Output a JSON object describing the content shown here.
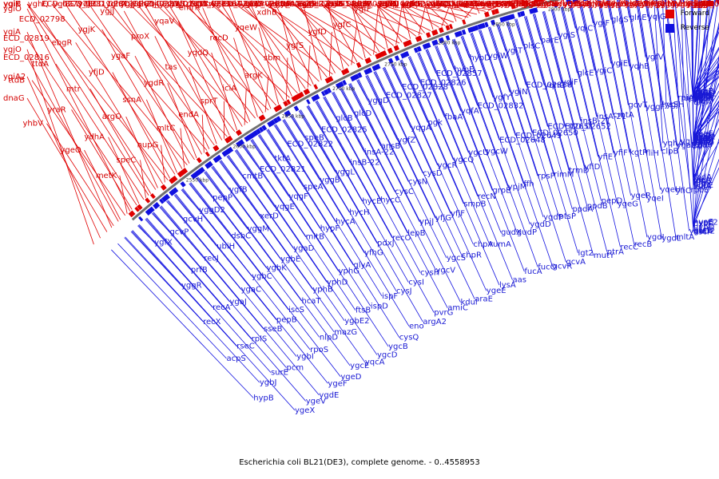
{
  "title": "Escherichia coli BL21(DE3), complete genome. - 0..4558953",
  "legend": [
    {
      "name": "Forward",
      "color": "#e00000"
    },
    {
      "name": "Reverse",
      "color": "#1010e0"
    }
  ],
  "axis_ticks": [
    "3150 kbp",
    "3100 kbp",
    "3050 kbp",
    "3000 kbp",
    "2950 kbp",
    "2900 kbp",
    "2850 kbp",
    "2800 kbp",
    "2750 kbp",
    "2700 kbp",
    "2650 kbp",
    "2600 kbp",
    "2550 kbp"
  ],
  "colors": {
    "forward": "#e00000",
    "reverse": "#1010e0",
    "backbone": "#707070"
  },
  "forward_genes": [
    "ygfH",
    "yqeC",
    "ygfE",
    "bglA",
    "yqeI",
    "ygfU",
    "yqeG",
    "ygfK",
    "ygfI",
    "insF-5",
    "ygfJ",
    "fldB",
    "idi",
    "ygfZ",
    "ygfQ",
    "insE-5",
    "lysR",
    "ygfA",
    "ygfG",
    "ygfB",
    "ygfF",
    "ygfC",
    "ygfD",
    "ygfS",
    "sbm",
    "argK",
    "iciA",
    "sprT",
    "endA",
    "mltC",
    "nupG",
    "speC",
    "metK",
    "yqgG",
    "ECD_02810",
    "gshB",
    "yqgE",
    "yqgF",
    "yggT",
    "yggU",
    "yggV",
    "ygfM",
    "yqeY",
    "insJ-5",
    "mutH",
    "argA",
    "yqeX",
    "insK-5",
    "xdhD",
    "xdhC",
    "ygfO",
    "ygdQ",
    "yqeA",
    "guaD",
    "ygeZ",
    "xdhA",
    "xdhB",
    "yqeW",
    "recD",
    "yqdQ",
    "tas",
    "ygdR",
    "ssnA",
    "argO",
    "ydhA",
    "ygeO",
    "yceB",
    "fucI",
    "xni",
    "fucK",
    "yqcD",
    "fucU",
    "bara",
    "fucR",
    "sdaC",
    "csdA",
    "ygdK",
    "ygdH",
    "sdaB",
    "ygcG",
    "yqcM",
    "yqcN",
    "iap",
    "ygbN",
    "hypE",
    "insL-5",
    "ygbL",
    "hypA",
    "norV",
    "srlA",
    "srlE",
    "emrR",
    "yqaV",
    "proX",
    "ygaF",
    "yfjD",
    "mtr",
    "yraR",
    "yhbV",
    "yraM",
    "agaD",
    "yhbT",
    "yraN",
    "yraL",
    "agaF",
    "yhbP",
    "yraO",
    "yraJ",
    "agaB",
    "yraI",
    "agaY",
    "agaE",
    "agaC",
    "agaS",
    "garP",
    "sohA",
    "tdcR",
    "yhaB",
    "agaR",
    "exuR",
    "gadR",
    "exuT",
    "tdcA",
    "ygjD",
    "yqjC",
    "ygjE",
    "ygjJ",
    "ygjK",
    "ebgR",
    "ttdA",
    "ttdB",
    "dnaG",
    "ygjI",
    "ygjL",
    "cpdA",
    "yqjE",
    "ygiA",
    "metC",
    "ygjB",
    "yghU",
    "yghT",
    "hybC",
    "yghB",
    "ECD_02856",
    "ECD_02855",
    "ECD_02854",
    "ECD_02853",
    "ECD_02852",
    "ECD_02851",
    "ECD_02837",
    "ECD_02836",
    "ECD_02835",
    "ECD_02834",
    "ECD_02833",
    "ECD_02818",
    "ECD_02817",
    "ECD_02815",
    "ECD_02814",
    "ECD_02813",
    "ECD_02811",
    "ECD_02797",
    "ECD_02798",
    "ECD_02819",
    "ECD_02816",
    "ygiA2",
    "ygjH",
    "ygiJ",
    "ygjM",
    "yggA",
    "yggW",
    "ygiM",
    "ygiC",
    "ygiF",
    "ygjG",
    "ebgA",
    "ebgC",
    "fadH",
    "yqjF",
    "rpoD",
    "yqjI",
    "ygiE",
    "ygiS",
    "ygjF",
    "ygjN",
    "yghJ",
    "yghX",
    "dkgA",
    "yghW",
    "yghZ",
    "yghA",
    "yqjH",
    "yghG",
    "yghQ",
    "ygiB",
    "ygiK",
    "ygiO",
    "ygjA",
    "ygjO"
  ],
  "reverse_genes": [
    "tdcG",
    "uxaA",
    "yhaJ",
    "ygjO",
    "uxaC",
    "ygjN",
    "aer",
    "ygjM",
    "ygiP",
    "uppP",
    "ygjH",
    "yqiG",
    "glnE",
    "glgS",
    "ygjF",
    "yqiC",
    "ygiS",
    "parE",
    "plsC",
    "ygiT",
    "ygiW",
    "hybD",
    "hybE",
    "ECD_02857",
    "ECD_02826",
    "ECD_02828",
    "ECD_02827",
    "yggD",
    "glcD",
    "glcB",
    "ECD_02825",
    "speB",
    "ECD_02822",
    "tktA",
    "ECD_02821",
    "cmtB",
    "ygfB",
    "pepP",
    "yggD2",
    "gcvH",
    "gcvP",
    "ygfX",
    "rfaE",
    "ygiS2",
    "yqhC",
    "ygiD",
    "parC",
    "exbB",
    "ygiU",
    "exbD",
    "sufI",
    "ygiA",
    "yqhA",
    "ygfV",
    "yqhB",
    "ygiE",
    "ygiC",
    "glcE",
    "ygiF",
    "yqhG",
    "ECD_02838",
    "ygiN",
    "ygfY",
    "ECD_02832",
    "yqfA",
    "fbaA",
    "pgk",
    "yqgA",
    "ygfZ",
    "ansB",
    "insA-22",
    "insB-22",
    "yggL",
    "yggB",
    "speA",
    "yqgF",
    "yqgE",
    "xerD",
    "yggM",
    "dsbC",
    "ubiH",
    "recJ",
    "prfB",
    "yggR",
    "ygfB2",
    "yggP",
    "yggQ",
    "ygeQ",
    "ygeL",
    "ygeA",
    "yqeF",
    "lgt",
    "thyA",
    "rpiA",
    "lysS",
    "yggF",
    "gcvT",
    "cmtA",
    "insA-21",
    "insB-21",
    "ECD_02652",
    "ECD_02651",
    "ECD_02650",
    "ECD_02649",
    "ECD_02648",
    "ygcW",
    "ygcU",
    "ygcQ",
    "ygcR",
    "cysD",
    "cysN",
    "cysC",
    "hycC",
    "hycE",
    "hycH",
    "hycA",
    "hypF",
    "mltB",
    "ygaD",
    "ygbE",
    "ygbK",
    "ygbC",
    "ygaC",
    "ygaJ",
    "recA",
    "recX",
    "alaS",
    "ygaA",
    "ygaE",
    "ygaH",
    "csrA",
    "hycI",
    "stpA",
    "ygaI",
    "ygaU",
    "ygaE2",
    "clpB",
    "fliH",
    "kgtP",
    "yfiF",
    "yfiE",
    "yfiD",
    "trmD",
    "rimM",
    "rpsP",
    "ffh",
    "ypjM",
    "grpE",
    "recN",
    "smpB",
    "yfjF",
    "yfjG",
    "ypjJ",
    "lepB",
    "recO",
    "pdxJ",
    "yfhG",
    "glyA",
    "yphG",
    "yphD",
    "yphB",
    "hcaT",
    "iscS",
    "pepB",
    "sseB",
    "rplS",
    "rseC",
    "acpS",
    "purL",
    "tadA",
    "yfhB",
    "yphE",
    "era",
    "rnc",
    "lepA",
    "rseA",
    "rpoE",
    "yfiC",
    "yqeH",
    "yqeI",
    "ygeR",
    "ygeG",
    "pepD",
    "ppdB",
    "ppdA",
    "ptsP",
    "ygdP",
    "ygdD",
    "gudP",
    "gudX",
    "rumA",
    "chpA",
    "chpR",
    "ygcS",
    "ygcV",
    "cysH",
    "cysI",
    "cysJ",
    "ispF",
    "ispD",
    "ftsB",
    "ygbE2",
    "mazG",
    "nlpD",
    "rpoS",
    "ygbI",
    "pcm",
    "surE",
    "ygbJ",
    "hypB",
    "hypC",
    "hypD",
    "hypF2",
    "hycG",
    "hycF",
    "ascG",
    "ascB",
    "ascF",
    "ygaD2",
    "mltA",
    "ygdL",
    "ygdI",
    "recB",
    "recC",
    "ptrA",
    "mutY",
    "lgt2",
    "gcvA",
    "gcvR",
    "fucO",
    "fucA",
    "aas",
    "lysA",
    "ygeE",
    "araE",
    "kdul",
    "amiC",
    "pvrG",
    "argA2",
    "eno",
    "cysQ",
    "ygcB",
    "ygcD",
    "yqcA",
    "ygcE",
    "ygeD",
    "ygeF",
    "ygdE",
    "ygeV",
    "ygeX"
  ],
  "caption": "Escherichia coli BL21(DE3), complete genome. - 0..4558953"
}
